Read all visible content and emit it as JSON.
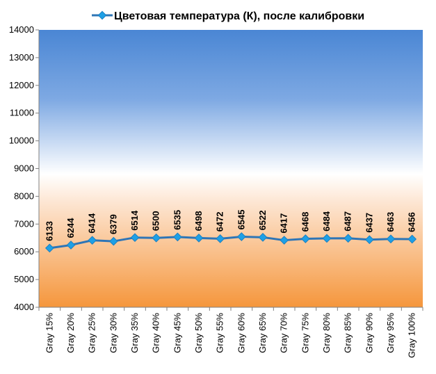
{
  "chart_data": {
    "type": "line",
    "title": "",
    "xlabel": "",
    "ylabel": "",
    "ylim": [
      4000,
      14000
    ],
    "y_ticks": [
      "4000",
      "5000",
      "6000",
      "7000",
      "8000",
      "9000",
      "10000",
      "11000",
      "12000",
      "13000",
      "14000"
    ],
    "y_tick_values": [
      4000,
      5000,
      6000,
      7000,
      8000,
      9000,
      10000,
      11000,
      12000,
      13000,
      14000
    ],
    "categories": [
      "Gray 15%",
      "Gray 20%",
      "Gray 25%",
      "Gray 30%",
      "Gray 35%",
      "Gray 40%",
      "Gray 45%",
      "Gray 50%",
      "Gray 55%",
      "Gray 60%",
      "Gray 65%",
      "Gray 70%",
      "Gray 75%",
      "Gray 80%",
      "Gray 85%",
      "Gray 90%",
      "Gray 95%",
      "Gray 100%"
    ],
    "series": [
      {
        "name": "Цветовая температура (К), после калибровки",
        "values": [
          6133,
          6244,
          6414,
          6379,
          6514,
          6500,
          6535,
          6498,
          6472,
          6545,
          6522,
          6417,
          6468,
          6484,
          6487,
          6437,
          6463,
          6456
        ],
        "color": "#2E75B6",
        "marker": "diamond",
        "marker_color": "#1EA0E6"
      }
    ],
    "legend": "top",
    "background": {
      "top": "#4A86D4",
      "middle": "#FFFFFF",
      "bottom": "#F5963C"
    }
  }
}
